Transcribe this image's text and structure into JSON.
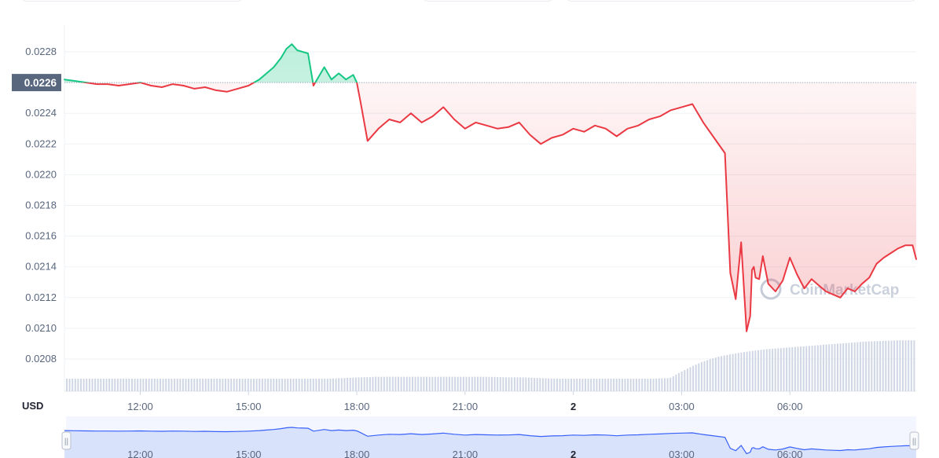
{
  "chart_data": {
    "type": "line",
    "currency_label": "USD",
    "watermark": "CoinMarketCap",
    "reference_price_label": "0.0226",
    "reference_price": 0.0226,
    "y_ticks": [
      "0.0228",
      "0.0226",
      "0.0224",
      "0.0222",
      "0.0220",
      "0.0218",
      "0.0216",
      "0.0214",
      "0.0212",
      "0.0210",
      "0.0208"
    ],
    "y_tick_values": [
      0.0228,
      0.0226,
      0.0224,
      0.0222,
      0.022,
      0.0218,
      0.0216,
      0.0214,
      0.0212,
      0.021,
      0.0208
    ],
    "x_ticks": [
      "12:00",
      "15:00",
      "18:00",
      "21:00",
      "2",
      "03:00",
      "06:00"
    ],
    "x_tick_hours": [
      12,
      15,
      18,
      21,
      24,
      27,
      30
    ],
    "x_range_hours": [
      9.9,
      33.5
    ],
    "ylim": [
      0.02068,
      0.02294
    ],
    "series": [
      {
        "x_hours": [
          9.9,
          10.2,
          10.5,
          10.8,
          11.1,
          11.4,
          11.7,
          12.0,
          12.3,
          12.6,
          12.9,
          13.2,
          13.5,
          13.8,
          14.1,
          14.4,
          14.7,
          15.0,
          15.3,
          15.5,
          15.7,
          15.9,
          16.05,
          16.2,
          16.35,
          16.5,
          16.65,
          16.8,
          16.95,
          17.1,
          17.3,
          17.5,
          17.7,
          17.9,
          18.0,
          18.1,
          18.3,
          18.6,
          18.9,
          19.2,
          19.5,
          19.8,
          20.1,
          20.4,
          20.7,
          21.0,
          21.3,
          21.6,
          21.9,
          22.2,
          22.5,
          22.8,
          23.1,
          23.4,
          23.7,
          24.0,
          24.3,
          24.6,
          24.9,
          25.2,
          25.5,
          25.8,
          26.1,
          26.4,
          26.7,
          27.0,
          27.3,
          27.6,
          27.9,
          28.2,
          28.35,
          28.5,
          28.65,
          28.8,
          28.9,
          28.95,
          29.0,
          29.05,
          29.15,
          29.25,
          29.4,
          29.6,
          29.8,
          30.0,
          30.2,
          30.4,
          30.6,
          30.8,
          31.0,
          31.2,
          31.4,
          31.6,
          31.8,
          32.0,
          32.2,
          32.4,
          32.6,
          32.8,
          33.0,
          33.2,
          33.4,
          33.5
        ],
        "values": [
          0.02262,
          0.02261,
          0.0226,
          0.02259,
          0.02259,
          0.02258,
          0.02259,
          0.0226,
          0.02258,
          0.02257,
          0.02259,
          0.02258,
          0.02256,
          0.02257,
          0.02255,
          0.02254,
          0.02256,
          0.02258,
          0.02262,
          0.02266,
          0.0227,
          0.02276,
          0.02282,
          0.02285,
          0.02281,
          0.0228,
          0.02279,
          0.02258,
          0.02264,
          0.0227,
          0.02262,
          0.02266,
          0.02262,
          0.02265,
          0.0226,
          0.02248,
          0.02222,
          0.0223,
          0.02236,
          0.02234,
          0.0224,
          0.02234,
          0.02238,
          0.02244,
          0.02236,
          0.0223,
          0.02234,
          0.02232,
          0.0223,
          0.02231,
          0.02234,
          0.02226,
          0.0222,
          0.02224,
          0.02226,
          0.0223,
          0.02228,
          0.02232,
          0.0223,
          0.02225,
          0.0223,
          0.02232,
          0.02236,
          0.02238,
          0.02242,
          0.02244,
          0.02246,
          0.02234,
          0.02224,
          0.02214,
          0.02136,
          0.02119,
          0.02156,
          0.02098,
          0.02108,
          0.02138,
          0.0214,
          0.02133,
          0.02132,
          0.02147,
          0.02129,
          0.02124,
          0.02131,
          0.02146,
          0.02135,
          0.02126,
          0.02132,
          0.02128,
          0.02124,
          0.02122,
          0.0212,
          0.02126,
          0.02124,
          0.02129,
          0.02133,
          0.02142,
          0.02146,
          0.02149,
          0.02152,
          0.02154,
          0.02154,
          0.02145
        ]
      }
    ],
    "volume": [
      0.2,
      0.2,
      0.2,
      0.2,
      0.2,
      0.2,
      0.2,
      0.2,
      0.2,
      0.2,
      0.2,
      0.2,
      0.2,
      0.2,
      0.2,
      0.2,
      0.2,
      0.21,
      0.22,
      0.23,
      0.23,
      0.23,
      0.23,
      0.23,
      0.23,
      0.23,
      0.23,
      0.22,
      0.22,
      0.21,
      0.2,
      0.2,
      0.2,
      0.2,
      0.2,
      0.2,
      0.2,
      0.21,
      0.35,
      0.47,
      0.55,
      0.6,
      0.64,
      0.67,
      0.69,
      0.71,
      0.73,
      0.75,
      0.77,
      0.79,
      0.8,
      0.81,
      0.81
    ]
  },
  "navigator": {
    "x_ticks": [
      "12:00",
      "15:00",
      "18:00",
      "21:00",
      "2",
      "03:00",
      "06:00"
    ],
    "handle_left_symbol": "||",
    "handle_right_symbol": "||"
  },
  "colors": {
    "up": "#16c784",
    "down": "#ea3943",
    "grid": "#eff2f5",
    "axis_text": "#58667e",
    "volume": "#cfd6e4",
    "navigator_fill": "#d9e2fb",
    "navigator_line": "#3861fb",
    "price_tag_bg": "#58667e"
  }
}
